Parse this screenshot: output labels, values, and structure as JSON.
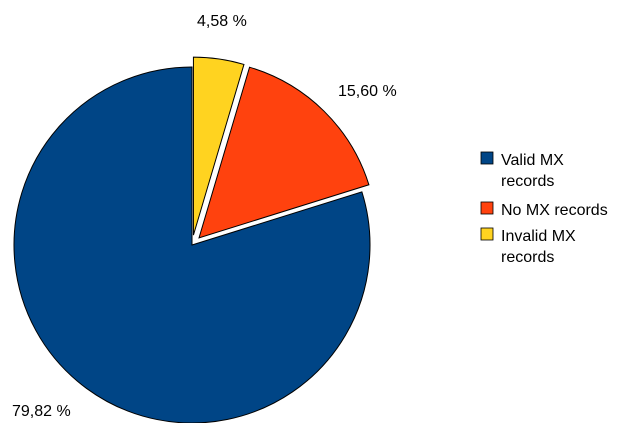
{
  "chart_data": {
    "type": "pie",
    "categories": [
      "Valid MX records",
      "No MX records",
      "Invalid MX records"
    ],
    "values": [
      79.82,
      15.6,
      4.58
    ],
    "value_labels": [
      "79,82 %",
      "15,60 %",
      "4,58 %"
    ],
    "colors": [
      "#004586",
      "#ff420e",
      "#ffd320"
    ],
    "exploded": [
      false,
      true,
      true
    ],
    "legend": {
      "placement": "right",
      "entries": [
        {
          "lines": [
            "Valid MX",
            "records"
          ]
        },
        {
          "lines": [
            "No MX records"
          ]
        },
        {
          "lines": [
            "Invalid MX",
            "records"
          ]
        }
      ]
    }
  }
}
